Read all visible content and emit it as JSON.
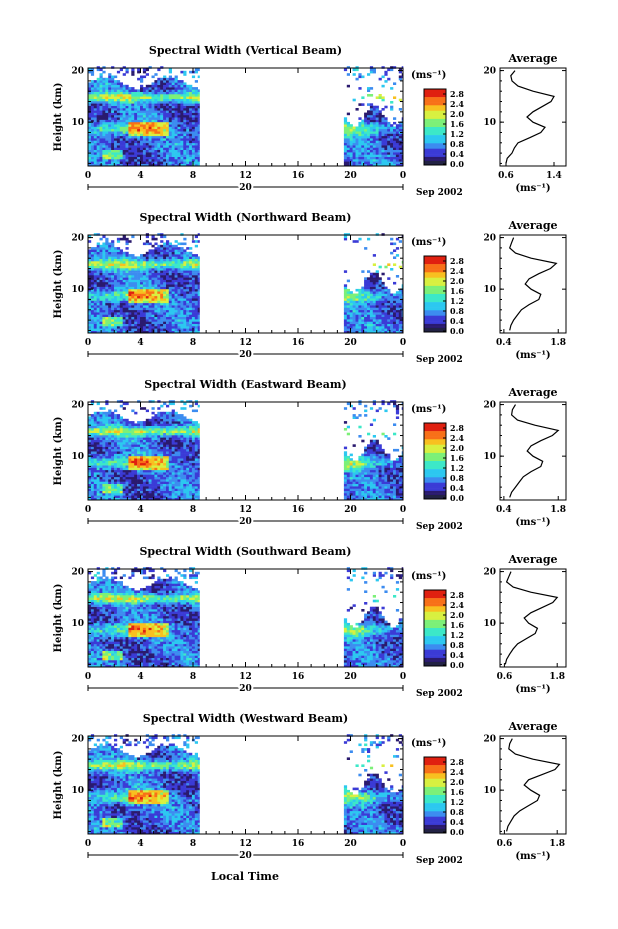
{
  "figure": {
    "xlabel": "Local Time",
    "date_label": "Sep 2002",
    "day_label": "20",
    "time_ticks": [
      "0",
      "4",
      "8",
      "12",
      "16",
      "20",
      "0"
    ],
    "height_ticks": [
      "20",
      "10"
    ],
    "height_label": "Height (km)",
    "colorbar_unit": "(ms⁻¹)",
    "colorbar_ticks": [
      "2.8",
      "2.4",
      "2.0",
      "1.6",
      "1.2",
      "0.8",
      "0.4",
      "0.0"
    ],
    "avg_title": "Average",
    "avg_unit": "(ms⁻¹)",
    "colors": {
      "scale": [
        "#2a1a6e",
        "#3b3bd6",
        "#3c8cf0",
        "#2cc8f0",
        "#3ce8c8",
        "#7cf078",
        "#d8f040",
        "#f8c020",
        "#f87018",
        "#e02010"
      ]
    }
  },
  "chart_data": [
    {
      "type": "heatmap",
      "title": "Spectral Width (Vertical Beam)",
      "ylabel": "Height (km)",
      "xlabel": "Local Time",
      "x_range_hours": [
        0,
        24
      ],
      "ylim_km": [
        1.5,
        20.5
      ],
      "data_gap_hours": [
        8.5,
        19.5
      ],
      "color_range_ms": [
        0.0,
        2.8
      ],
      "avg": {
        "title": "Average",
        "xlabel": "(ms⁻¹)",
        "xticks": [
          "0.6",
          "1.4"
        ],
        "xlim": [
          0.5,
          1.6
        ],
        "profile": [
          [
            2,
            0.6
          ],
          [
            3,
            0.62
          ],
          [
            4,
            0.7
          ],
          [
            5,
            0.74
          ],
          [
            6,
            0.8
          ],
          [
            7,
            1.0
          ],
          [
            8,
            1.18
          ],
          [
            9,
            1.25
          ],
          [
            10,
            1.05
          ],
          [
            11,
            0.95
          ],
          [
            12,
            1.05
          ],
          [
            13,
            1.2
          ],
          [
            14,
            1.35
          ],
          [
            15,
            1.4
          ],
          [
            16,
            1.05
          ],
          [
            17,
            0.8
          ],
          [
            18,
            0.7
          ],
          [
            19,
            0.68
          ],
          [
            20,
            0.75
          ]
        ]
      }
    },
    {
      "type": "heatmap",
      "title": "Spectral Width (Northward Beam)",
      "ylabel": "Height (km)",
      "xlabel": "Local Time",
      "x_range_hours": [
        0,
        24
      ],
      "ylim_km": [
        1.5,
        20.5
      ],
      "data_gap_hours": [
        8.5,
        19.5
      ],
      "color_range_ms": [
        0.0,
        2.8
      ],
      "avg": {
        "title": "Average",
        "xlabel": "(ms⁻¹)",
        "xticks": [
          "0.4",
          "1.8"
        ],
        "xlim": [
          0.3,
          2.0
        ],
        "profile": [
          [
            2,
            0.55
          ],
          [
            3,
            0.58
          ],
          [
            4,
            0.65
          ],
          [
            5,
            0.75
          ],
          [
            6,
            0.85
          ],
          [
            7,
            1.05
          ],
          [
            8,
            1.3
          ],
          [
            9,
            1.35
          ],
          [
            10,
            1.1
          ],
          [
            11,
            0.95
          ],
          [
            12,
            1.05
          ],
          [
            13,
            1.3
          ],
          [
            14,
            1.6
          ],
          [
            15,
            1.75
          ],
          [
            16,
            1.1
          ],
          [
            17,
            0.7
          ],
          [
            18,
            0.55
          ],
          [
            19,
            0.6
          ],
          [
            20,
            0.65
          ]
        ]
      }
    },
    {
      "type": "heatmap",
      "title": "Spectral Width (Eastward Beam)",
      "ylabel": "Height (km)",
      "xlabel": "Local Time",
      "x_range_hours": [
        0,
        24
      ],
      "ylim_km": [
        1.5,
        20.5
      ],
      "data_gap_hours": [
        8.5,
        19.5
      ],
      "color_range_ms": [
        0.0,
        2.8
      ],
      "avg": {
        "title": "Average",
        "xlabel": "(ms⁻¹)",
        "xticks": [
          "0.4",
          "1.8"
        ],
        "xlim": [
          0.3,
          2.0
        ],
        "profile": [
          [
            2,
            0.55
          ],
          [
            3,
            0.6
          ],
          [
            4,
            0.7
          ],
          [
            5,
            0.8
          ],
          [
            6,
            0.9
          ],
          [
            7,
            1.1
          ],
          [
            8,
            1.35
          ],
          [
            9,
            1.4
          ],
          [
            10,
            1.15
          ],
          [
            11,
            1.0
          ],
          [
            12,
            1.1
          ],
          [
            13,
            1.35
          ],
          [
            14,
            1.65
          ],
          [
            15,
            1.8
          ],
          [
            16,
            1.2
          ],
          [
            17,
            0.75
          ],
          [
            18,
            0.6
          ],
          [
            19,
            0.62
          ],
          [
            20,
            0.7
          ]
        ]
      }
    },
    {
      "type": "heatmap",
      "title": "Spectral Width (Southward Beam)",
      "ylabel": "Height (km)",
      "xlabel": "Local Time",
      "x_range_hours": [
        0,
        24
      ],
      "ylim_km": [
        1.5,
        20.5
      ],
      "data_gap_hours": [
        8.5,
        19.5
      ],
      "color_range_ms": [
        0.0,
        2.8
      ],
      "avg": {
        "title": "Average",
        "xlabel": "(ms⁻¹)",
        "xticks": [
          "0.6",
          "1.8"
        ],
        "xlim": [
          0.5,
          2.0
        ],
        "profile": [
          [
            2,
            0.62
          ],
          [
            3,
            0.65
          ],
          [
            4,
            0.72
          ],
          [
            5,
            0.8
          ],
          [
            6,
            0.9
          ],
          [
            7,
            1.1
          ],
          [
            8,
            1.3
          ],
          [
            9,
            1.35
          ],
          [
            10,
            1.15
          ],
          [
            11,
            1.05
          ],
          [
            12,
            1.2
          ],
          [
            13,
            1.45
          ],
          [
            14,
            1.7
          ],
          [
            15,
            1.8
          ],
          [
            16,
            1.2
          ],
          [
            17,
            0.8
          ],
          [
            18,
            0.65
          ],
          [
            19,
            0.7
          ],
          [
            20,
            0.75
          ]
        ]
      }
    },
    {
      "type": "heatmap",
      "title": "Spectral Width (Westward Beam)",
      "ylabel": "Height (km)",
      "xlabel": "Local Time",
      "x_range_hours": [
        0,
        24
      ],
      "ylim_km": [
        1.5,
        20.5
      ],
      "data_gap_hours": [
        8.5,
        19.5
      ],
      "color_range_ms": [
        0.0,
        2.8
      ],
      "avg": {
        "title": "Average",
        "xlabel": "(ms⁻¹)",
        "xticks": [
          "0.6",
          "1.8"
        ],
        "xlim": [
          0.5,
          2.0
        ],
        "profile": [
          [
            2,
            0.65
          ],
          [
            3,
            0.68
          ],
          [
            4,
            0.75
          ],
          [
            5,
            0.82
          ],
          [
            6,
            0.95
          ],
          [
            7,
            1.15
          ],
          [
            8,
            1.35
          ],
          [
            9,
            1.4
          ],
          [
            10,
            1.2
          ],
          [
            11,
            1.05
          ],
          [
            12,
            1.15
          ],
          [
            13,
            1.45
          ],
          [
            14,
            1.75
          ],
          [
            15,
            1.85
          ],
          [
            16,
            1.25
          ],
          [
            17,
            0.85
          ],
          [
            18,
            0.7
          ],
          [
            19,
            0.72
          ],
          [
            20,
            0.78
          ]
        ]
      }
    }
  ]
}
